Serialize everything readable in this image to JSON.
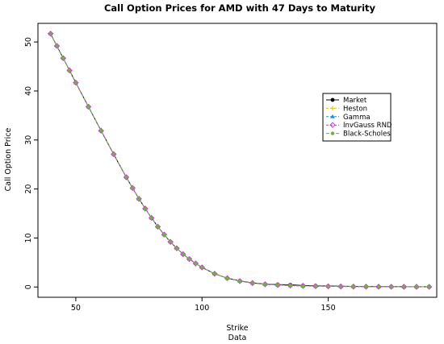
{
  "chart_data": {
    "type": "line",
    "title": "Call Option Prices for AMD with 47 Days to Maturity",
    "xlabel": "Strike",
    "xlabel_sub": "Data",
    "ylabel": "Call Option Price",
    "xlim": [
      35,
      193
    ],
    "ylim": [
      -2.1,
      53.8
    ],
    "x_ticks": [
      50,
      100,
      150
    ],
    "y_ticks": [
      0,
      10,
      20,
      30,
      40,
      50
    ],
    "grid": false,
    "legend_position": "right",
    "x": [
      40,
      42.5,
      45,
      47.5,
      50,
      55,
      60,
      65,
      70,
      72.5,
      75,
      77.5,
      80,
      82.5,
      85,
      87.5,
      90,
      92.5,
      95,
      97.5,
      100,
      105,
      110,
      115,
      120,
      125,
      130,
      135,
      140,
      145,
      150,
      155,
      160,
      165,
      170,
      175,
      180,
      185,
      190
    ],
    "series": [
      {
        "name": "Market",
        "color": "#000000",
        "marker": "circle",
        "values": [
          51.7,
          49.2,
          46.7,
          44.2,
          41.7,
          36.8,
          31.9,
          27.1,
          22.4,
          20.2,
          18.0,
          16.0,
          14.1,
          12.3,
          10.7,
          9.2,
          7.9,
          6.7,
          5.7,
          4.8,
          4.0,
          2.7,
          1.8,
          1.25,
          0.85,
          0.6,
          0.5,
          0.45,
          0.3,
          0.25,
          0.2,
          0.15,
          0.12,
          0.1,
          0.08,
          0.07,
          0.06,
          0.05,
          0.04
        ]
      },
      {
        "name": "Heston",
        "color": "#e3c21e",
        "marker": "plus",
        "values": [
          51.7,
          49.2,
          46.7,
          44.2,
          41.7,
          36.8,
          31.9,
          27.1,
          22.4,
          20.2,
          18.0,
          16.0,
          14.1,
          12.3,
          10.7,
          9.2,
          7.9,
          6.7,
          5.7,
          4.8,
          4.0,
          2.7,
          1.8,
          1.2,
          0.8,
          0.55,
          0.4,
          0.3,
          0.22,
          0.17,
          0.13,
          0.1,
          0.08,
          0.07,
          0.06,
          0.05,
          0.04,
          0.04,
          0.03
        ]
      },
      {
        "name": "Gamma",
        "color": "#1e8fd6",
        "marker": "triangle",
        "values": [
          51.7,
          49.2,
          46.7,
          44.2,
          41.7,
          36.8,
          31.9,
          27.1,
          22.4,
          20.2,
          18.0,
          16.0,
          14.1,
          12.3,
          10.7,
          9.2,
          7.9,
          6.7,
          5.7,
          4.8,
          4.0,
          2.7,
          1.8,
          1.2,
          0.8,
          0.55,
          0.4,
          0.3,
          0.22,
          0.17,
          0.13,
          0.1,
          0.08,
          0.07,
          0.06,
          0.05,
          0.04,
          0.04,
          0.03
        ]
      },
      {
        "name": "InvGauss RND",
        "color": "#d62fd6",
        "marker": "diamond",
        "values": [
          51.7,
          49.2,
          46.7,
          44.2,
          41.7,
          36.8,
          31.9,
          27.1,
          22.4,
          20.2,
          18.0,
          16.0,
          14.1,
          12.3,
          10.7,
          9.2,
          7.9,
          6.7,
          5.7,
          4.8,
          4.0,
          2.7,
          1.8,
          1.2,
          0.8,
          0.55,
          0.4,
          0.3,
          0.22,
          0.17,
          0.13,
          0.1,
          0.08,
          0.07,
          0.06,
          0.05,
          0.04,
          0.04,
          0.03
        ]
      },
      {
        "name": "Black-Scholes",
        "color": "#6fb04a",
        "marker": "dot",
        "values": [
          51.7,
          49.2,
          46.7,
          44.2,
          41.7,
          36.8,
          31.9,
          27.1,
          22.4,
          20.2,
          18.0,
          16.0,
          14.1,
          12.3,
          10.7,
          9.2,
          7.9,
          6.7,
          5.7,
          4.8,
          4.0,
          2.7,
          1.8,
          1.2,
          0.8,
          0.55,
          0.4,
          0.3,
          0.22,
          0.17,
          0.13,
          0.1,
          0.08,
          0.07,
          0.06,
          0.05,
          0.04,
          0.04,
          0.03
        ]
      }
    ]
  }
}
